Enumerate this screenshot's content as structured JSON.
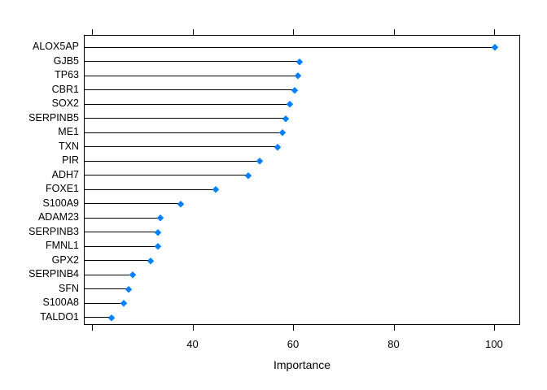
{
  "chart_data": {
    "type": "dot",
    "style": "lollipop",
    "orientation": "horizontal",
    "title": "",
    "xlabel": "Importance",
    "ylabel": "",
    "categories": [
      "ALOX5AP",
      "GJB5",
      "TP63",
      "CBR1",
      "SOX2",
      "SERPINB5",
      "ME1",
      "TXN",
      "PIR",
      "ADH7",
      "FOXE1",
      "S100A9",
      "ADAM23",
      "SERPINB3",
      "FMNL1",
      "GPX2",
      "SERPINB4",
      "SFN",
      "S100A8",
      "TALDO1"
    ],
    "values": [
      100.0,
      61.2,
      60.8,
      60.1,
      59.2,
      58.3,
      57.7,
      56.8,
      53.2,
      50.9,
      44.4,
      37.5,
      33.4,
      33.0,
      33.0,
      31.5,
      28.0,
      27.1,
      26.1,
      23.7
    ],
    "xlim": [
      18.4,
      105.2
    ],
    "x_ticks": [
      {
        "value": 20,
        "label": ""
      },
      {
        "value": 40,
        "label": "40"
      },
      {
        "value": 60,
        "label": "60"
      },
      {
        "value": 80,
        "label": "80"
      },
      {
        "value": 100,
        "label": "100"
      }
    ],
    "grid": false,
    "legend": null,
    "marker": "diamond",
    "colors": {
      "point": "#0080FF",
      "line": "#000000",
      "box": "#000000",
      "text": "#000000",
      "background": "#FFFFFF"
    }
  }
}
